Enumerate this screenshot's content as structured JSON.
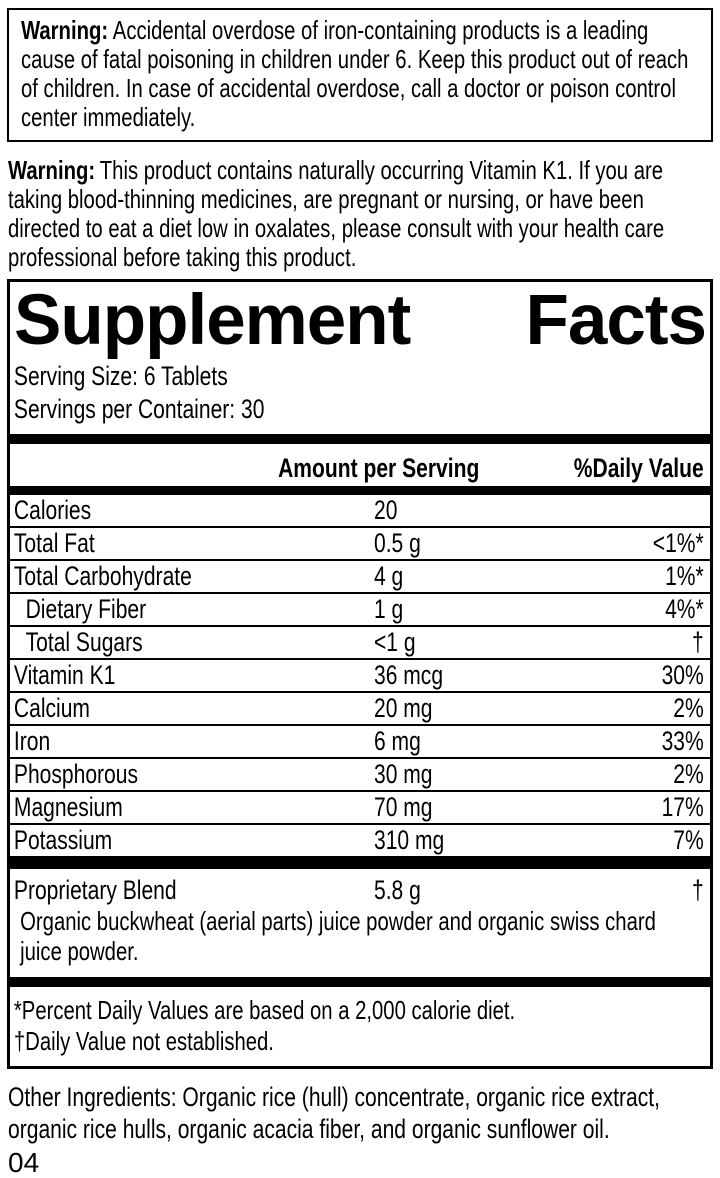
{
  "colors": {
    "text": "#000000",
    "background": "#ffffff",
    "border": "#000000"
  },
  "warning_box": {
    "label": "Warning:",
    "text": "Accidental overdose of iron-containing products is a leading cause of fatal poisoning in children under 6. Keep this product out of reach of children. In case of accidental overdose, call a doctor or poison control center immediately."
  },
  "warning_k1": {
    "label": "Warning:",
    "text": "This product contains naturally occurring Vitamin K1. If you are taking blood-thinning medicines, are pregnant or nursing, or have been directed to eat a diet low in oxalates, please consult with your health care professional before taking this product."
  },
  "panel": {
    "title": "Supplement Facts",
    "serving_size": "Serving Size: 6 Tablets",
    "servings_per_container": "Servings per Container: 30",
    "columns": {
      "amount_header": "Amount per Serving",
      "dv_header": "%Daily Value"
    },
    "rows": [
      {
        "name": "Calories",
        "amount": "20",
        "dv": ""
      },
      {
        "name": "Total Fat",
        "amount": "0.5 g",
        "dv": "<1%*"
      },
      {
        "name": "Total Carbohydrate",
        "amount": "4 g",
        "dv": "1%*"
      },
      {
        "name": "Dietary Fiber",
        "amount": "1 g",
        "dv": "4%*"
      },
      {
        "name": "Total Sugars",
        "amount": "<1 g",
        "dv": "†"
      },
      {
        "name": "Vitamin K1",
        "amount": "36 mcg",
        "dv": "30%"
      },
      {
        "name": "Calcium",
        "amount": "20 mg",
        "dv": "2%"
      },
      {
        "name": "Iron",
        "amount": "6 mg",
        "dv": "33%"
      },
      {
        "name": "Phosphorous",
        "amount": "30 mg",
        "dv": "2%"
      },
      {
        "name": "Magnesium",
        "amount": "70 mg",
        "dv": "17%"
      },
      {
        "name": "Potassium",
        "amount": "310 mg",
        "dv": "7%"
      }
    ],
    "blend": {
      "name": "Proprietary Blend",
      "amount": "5.8 g",
      "dv": "†",
      "description": "Organic buckwheat (aerial parts) juice powder and organic swiss chard juice powder."
    },
    "footnotes": {
      "percent": "*Percent Daily Values are based on a 2,000 calorie diet.",
      "dagger": "†Daily Value not established."
    }
  },
  "other_ingredients": "Other Ingredients: Organic rice (hull) concentrate, organic rice extract, organic rice hulls, organic acacia fiber, and organic sunflower oil.",
  "page_number": "04"
}
